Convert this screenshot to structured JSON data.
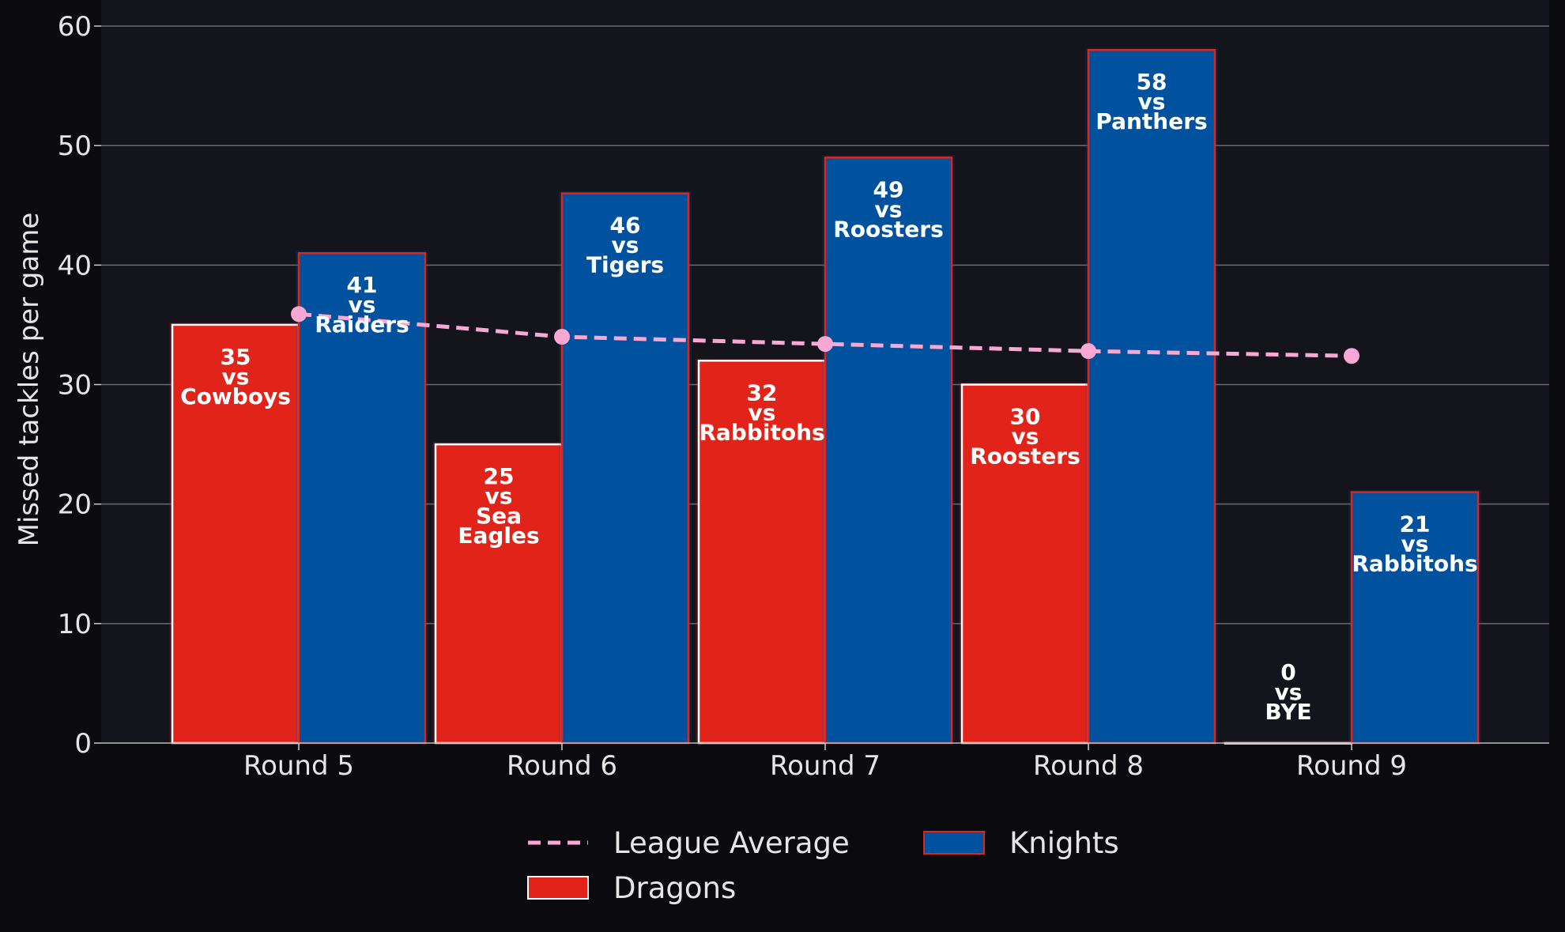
{
  "chart_data": {
    "type": "bar",
    "ylabel": "Missed tackles per game",
    "xlabel": "",
    "ylim": [
      0,
      60
    ],
    "yticks": [
      0,
      10,
      20,
      30,
      40,
      50,
      60
    ],
    "grid": true,
    "categories": [
      "Round 5",
      "Round 6",
      "Round 7",
      "Round 8",
      "Round 9"
    ],
    "series": [
      {
        "name": "Dragons",
        "color": "#e2231a",
        "values": [
          35,
          25,
          32,
          30,
          0
        ],
        "labels": [
          "35\nvs\nCowboys",
          "25\nvs\nSea\nEagles",
          "32\nvs\nRabbitohs",
          "30\nvs\nRoosters",
          "0\nvs\nBYE"
        ]
      },
      {
        "name": "Knights",
        "color": "#00529f",
        "values": [
          41,
          46,
          49,
          58,
          21
        ],
        "labels": [
          "41\nvs\nRaiders",
          "46\nvs\nTigers",
          "49\nvs\nRoosters",
          "58\nvs\nPanthers",
          "21\nvs\nRabbitohs"
        ]
      },
      {
        "name": "League Average",
        "type": "line",
        "color": "#f9a8d4",
        "values": [
          35.9,
          34.0,
          33.4,
          32.8,
          32.4
        ]
      }
    ],
    "legend": {
      "placement": "bottom-center",
      "entries": [
        "League Average",
        "Dragons",
        "Knights"
      ]
    }
  }
}
